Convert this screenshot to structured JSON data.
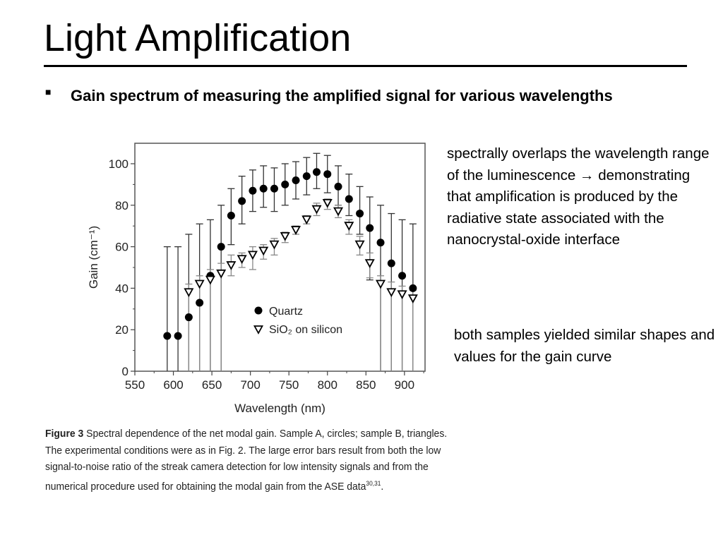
{
  "slide": {
    "title": "Light Amplification",
    "bullet": "Gain spectrum of measuring the amplified signal for various wavelengths",
    "note1": "spectrally overlaps the wavelength range of the luminescence → demonstrating that amplification is produced by the radiative state associated with the nanocrystal-oxide interface",
    "note2": "both samples yielded similar shapes and values for the gain curve",
    "caption_label": "Figure 3",
    "caption_text": " Spectral dependence of the net modal gain. Sample A, circles; sample B, triangles. The experimental conditions were as in Fig. 2. The large error bars result from both the low signal-to-noise ratio of the streak camera detection for low intensity signals and from the numerical procedure used for obtaining the modal gain from the ASE data",
    "caption_refs": "30,31",
    "caption_end": "."
  },
  "chart_data": {
    "type": "scatter",
    "xlabel": "Wavelength (nm)",
    "ylabel": "Gain (cm⁻¹)",
    "xlim": [
      550,
      927
    ],
    "ylim": [
      0,
      110
    ],
    "xticks": [
      550,
      600,
      650,
      700,
      750,
      800,
      850,
      900
    ],
    "yticks": [
      0,
      20,
      40,
      60,
      80,
      100
    ],
    "grid": false,
    "legend_position": "center-left",
    "series": [
      {
        "name": "Quartz",
        "marker": "filled-circle",
        "color": "#000000",
        "x": [
          592,
          606,
          620,
          634,
          648,
          662,
          675,
          689,
          703,
          717,
          731,
          745,
          759,
          773,
          786,
          800,
          814,
          828,
          842,
          855,
          869,
          883,
          897,
          911
        ],
        "y": [
          17,
          17,
          26,
          33,
          46,
          60,
          75,
          82,
          87,
          88,
          88,
          90,
          92,
          94,
          96,
          95,
          89,
          83,
          76,
          69,
          62,
          52,
          46,
          40
        ],
        "err_high": [
          60,
          60,
          66,
          71,
          73,
          80,
          88,
          94,
          97,
          99,
          98,
          100,
          101,
          103,
          105,
          104,
          99,
          95,
          89,
          84,
          80,
          76,
          73,
          71
        ],
        "err_low": [
          0,
          0,
          0,
          0,
          0,
          0,
          61,
          71,
          77,
          79,
          77,
          80,
          83,
          85,
          88,
          86,
          80,
          75,
          66,
          44,
          0,
          0,
          0,
          0
        ]
      },
      {
        "name": "SiO₂ on silicon",
        "marker": "open-triangle-down",
        "color": "#000000",
        "x": [
          620,
          634,
          648,
          662,
          675,
          689,
          703,
          717,
          731,
          745,
          759,
          773,
          786,
          800,
          814,
          828,
          842,
          855,
          869,
          883,
          897,
          911
        ],
        "y": [
          38,
          42,
          44,
          47,
          51,
          54,
          56,
          58,
          61,
          65,
          68,
          73,
          78,
          81,
          77,
          70,
          61,
          52,
          42,
          38,
          37,
          35
        ],
        "err_high": [
          42,
          46,
          49,
          52,
          56,
          57,
          60,
          61,
          64,
          67,
          70,
          75,
          81,
          83,
          80,
          73,
          65,
          57,
          46,
          43,
          41,
          39
        ],
        "err_low": [
          0,
          0,
          0,
          0,
          46,
          50,
          49,
          54,
          56,
          62,
          66,
          71,
          75,
          78,
          74,
          66,
          56,
          45,
          0,
          0,
          0,
          0
        ]
      }
    ]
  }
}
